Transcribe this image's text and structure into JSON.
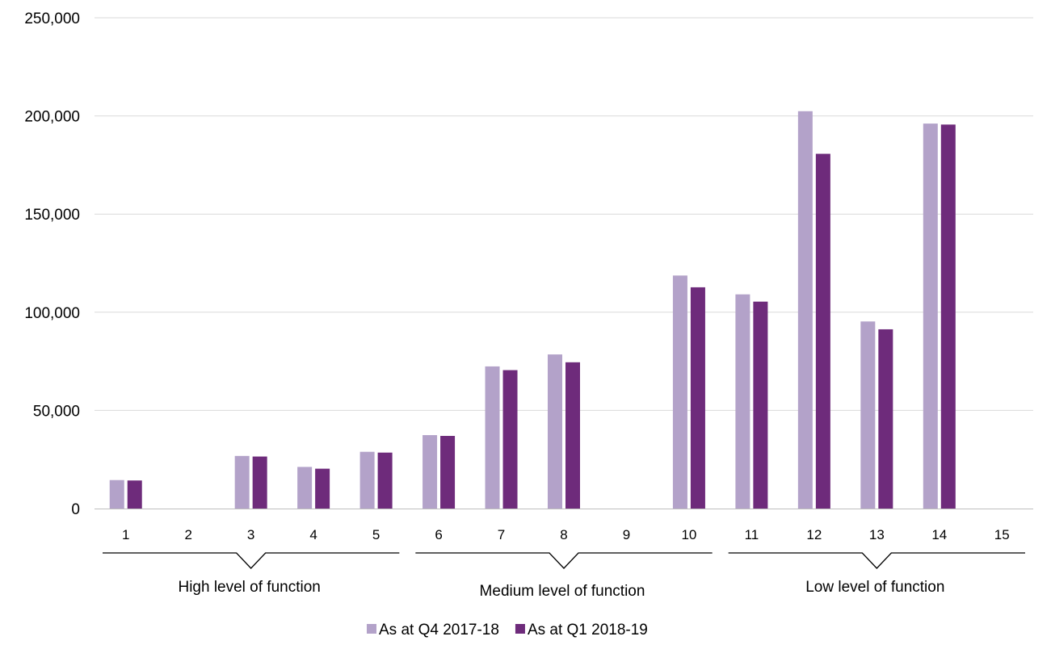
{
  "chart_data": {
    "type": "bar",
    "categories": [
      "1",
      "2",
      "3",
      "4",
      "5",
      "6",
      "7",
      "8",
      "9",
      "10",
      "11",
      "12",
      "13",
      "14",
      "15"
    ],
    "series": [
      {
        "name": "As at Q4 2017-18",
        "color": "#b3a2c9",
        "values": [
          14500,
          0,
          26800,
          21200,
          28900,
          37400,
          72400,
          78500,
          0,
          118700,
          109100,
          202400,
          95300,
          196100,
          0
        ]
      },
      {
        "name": "As at Q1 2018-19",
        "color": "#6e2b7b",
        "values": [
          14300,
          0,
          26500,
          20300,
          28500,
          37000,
          70500,
          74500,
          0,
          112700,
          105400,
          180700,
          91300,
          195600,
          0
        ]
      }
    ],
    "yticks": [
      "0",
      "50,000",
      "100,000",
      "150,000",
      "200,000",
      "250,000"
    ],
    "ylim": [
      0,
      250000
    ],
    "grid": true,
    "groups": [
      {
        "label": "High level of function",
        "from": 1,
        "to": 5
      },
      {
        "label": "Medium level of function",
        "from": 6,
        "to": 10
      },
      {
        "label": "Low level of function",
        "from": 11,
        "to": 15
      }
    ],
    "legend_position": "bottom-center"
  }
}
